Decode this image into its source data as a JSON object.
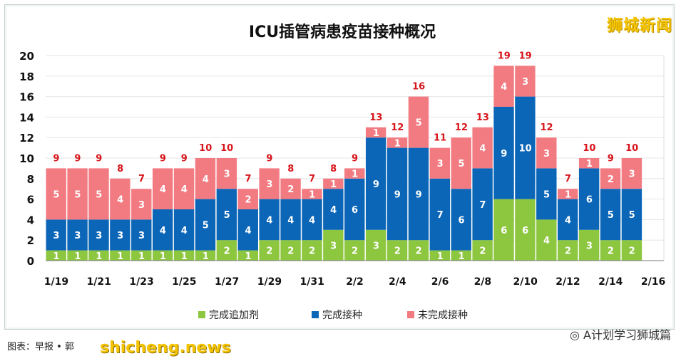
{
  "chart_data": {
    "type": "bar",
    "stacked": true,
    "title": "ICU插管病患疫苗接种概况",
    "xlabel": "",
    "ylabel": "",
    "ylim": [
      0,
      20
    ],
    "yticks": [
      0,
      2,
      4,
      6,
      8,
      10,
      12,
      14,
      16,
      18,
      20
    ],
    "grid": true,
    "legend_position": "bottom",
    "categories": [
      "1/19",
      "1/20",
      "1/21",
      "1/22",
      "1/23",
      "1/24",
      "1/25",
      "1/26",
      "1/27",
      "1/28",
      "1/29",
      "1/30",
      "1/31",
      "2/1",
      "2/2",
      "2/3",
      "2/4",
      "2/5",
      "2/6",
      "2/7",
      "2/8",
      "2/9",
      "2/10",
      "2/11",
      "2/12",
      "2/13",
      "2/14",
      "2/15",
      "2/16"
    ],
    "xtick_labels": [
      "1/19",
      "1/21",
      "1/23",
      "1/25",
      "1/27",
      "1/29",
      "1/31",
      "2/2",
      "2/4",
      "2/6",
      "2/8",
      "2/10",
      "2/12",
      "2/14",
      "2/16"
    ],
    "series": [
      {
        "name": "完成追加剂",
        "color": "#8dc63f",
        "values": [
          1,
          1,
          1,
          1,
          1,
          1,
          1,
          1,
          2,
          1,
          2,
          2,
          2,
          3,
          2,
          3,
          2,
          2,
          1,
          1,
          2,
          6,
          6,
          4,
          2,
          3,
          2,
          2,
          null
        ]
      },
      {
        "name": "完成接种",
        "color": "#0b66b8",
        "values": [
          3,
          3,
          3,
          3,
          3,
          4,
          4,
          5,
          5,
          4,
          4,
          4,
          4,
          4,
          6,
          9,
          9,
          9,
          7,
          6,
          7,
          9,
          10,
          5,
          4,
          6,
          5,
          5,
          null
        ]
      },
      {
        "name": "未完成接种",
        "color": "#f27b82",
        "values": [
          5,
          5,
          5,
          4,
          3,
          4,
          4,
          4,
          3,
          2,
          3,
          2,
          1,
          1,
          1,
          1,
          1,
          5,
          3,
          5,
          4,
          4,
          3,
          3,
          1,
          1,
          2,
          3,
          null
        ]
      }
    ],
    "totals": [
      9,
      9,
      9,
      8,
      7,
      9,
      9,
      10,
      10,
      7,
      9,
      8,
      7,
      8,
      9,
      13,
      12,
      16,
      11,
      12,
      13,
      19,
      19,
      12,
      7,
      10,
      9,
      10,
      null
    ],
    "total_label_color": "#d7141a"
  },
  "watermark_top": "狮城新闻",
  "watermark_bottom": "shicheng.news",
  "credit": "图表：早报 • 郭",
  "wechat": "A计划学习狮城篇"
}
